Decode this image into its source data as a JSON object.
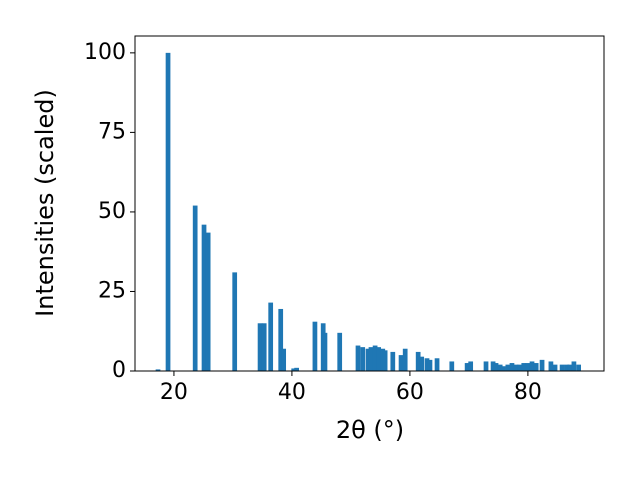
{
  "chart_data": {
    "type": "bar",
    "xlabel": "2θ (°)",
    "ylabel": "Intensities (scaled)",
    "color": "#1f77b4",
    "x": [
      17.3,
      19.0,
      23.6,
      25.1,
      25.8,
      30.3,
      34.6,
      35.3,
      36.4,
      38.1,
      38.6,
      40.3,
      40.8,
      43.9,
      45.3,
      45.6,
      48.1,
      51.2,
      52.0,
      52.9,
      53.4,
      54.1,
      54.7,
      55.4,
      55.8,
      57.1,
      58.5,
      59.2,
      61.4,
      62.0,
      62.9,
      63.4,
      64.6,
      67.1,
      69.7,
      70.3,
      72.9,
      74.1,
      74.6,
      75.3,
      75.8,
      76.6,
      77.3,
      78.0,
      78.6,
      79.3,
      80.0,
      80.7,
      81.4,
      82.4,
      83.9,
      84.6,
      85.8,
      86.6,
      87.1,
      87.8,
      88.6
    ],
    "values": [
      0.5,
      100,
      52,
      46,
      43.5,
      31,
      15,
      15,
      21.5,
      19.5,
      7,
      0.8,
      1,
      15.5,
      15,
      12,
      12,
      8,
      7.5,
      7,
      7.5,
      8,
      7.5,
      7,
      6.5,
      6,
      5,
      7,
      6,
      4.5,
      4,
      3.5,
      4,
      3,
      2.5,
      3,
      3,
      3,
      2.5,
      2,
      1.5,
      2,
      2.5,
      2,
      2,
      2.5,
      2.5,
      3,
      2.5,
      3.5,
      3,
      2,
      2,
      2,
      2,
      3,
      2
    ],
    "xlim": [
      13.4,
      92.9
    ],
    "xticks": [
      20,
      40,
      60,
      80
    ],
    "ylim": [
      0,
      105.3
    ],
    "yticks": [
      0,
      25,
      50,
      75,
      100
    ]
  }
}
